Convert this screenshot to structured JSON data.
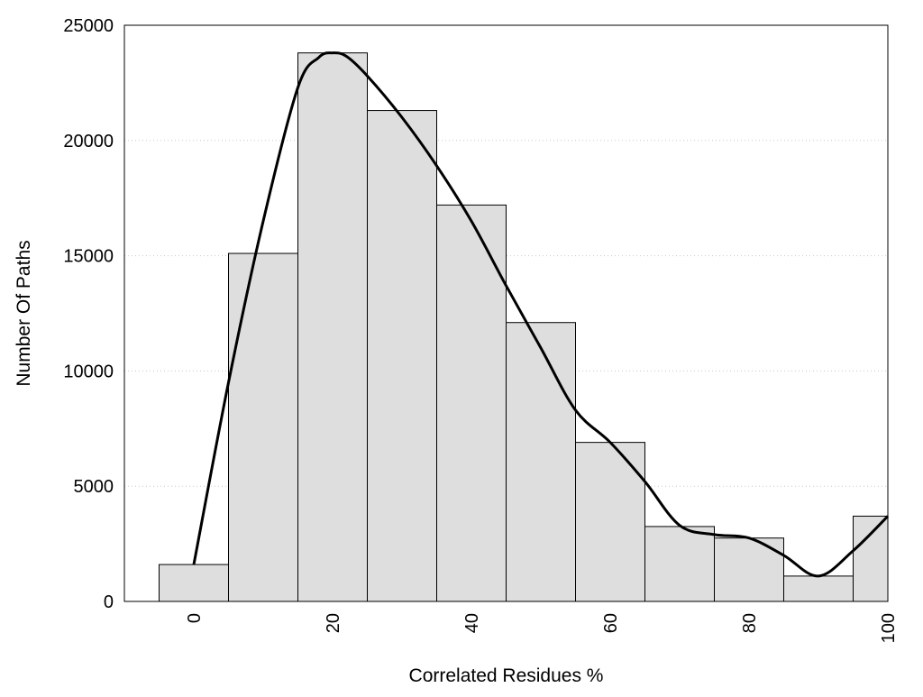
{
  "chart_data": {
    "type": "bar",
    "title": "",
    "xlabel": "Correlated Residues %",
    "ylabel": "Number Of Paths",
    "xlim": [
      -10,
      100
    ],
    "ylim": [
      0,
      25000
    ],
    "grid": "horizontal-dotted",
    "bin_width": 10,
    "bin_centers": [
      0,
      10,
      20,
      30,
      40,
      50,
      60,
      70,
      80,
      90,
      100
    ],
    "values": [
      1600,
      15100,
      23800,
      21300,
      17200,
      12100,
      6900,
      3250,
      2750,
      1100,
      3700
    ],
    "x_ticks": [
      "0",
      "20",
      "40",
      "60",
      "80",
      "100"
    ],
    "y_ticks": [
      "0",
      "5000",
      "10000",
      "15000",
      "20000",
      "25000"
    ],
    "bar_fill": "#dedede",
    "bar_stroke": "#000000",
    "curve": {
      "x": [
        0,
        5,
        10,
        15,
        18,
        20,
        22,
        25,
        30,
        35,
        40,
        45,
        50,
        55,
        60,
        65,
        70,
        75,
        80,
        85,
        90,
        95,
        100
      ],
      "y": [
        1600,
        9500,
        16500,
        22300,
        23600,
        23800,
        23650,
        22800,
        21000,
        18900,
        16500,
        13700,
        11000,
        8300,
        6900,
        5200,
        3300,
        2900,
        2750,
        2000,
        1100,
        2200,
        3700
      ],
      "color": "#000000"
    }
  }
}
